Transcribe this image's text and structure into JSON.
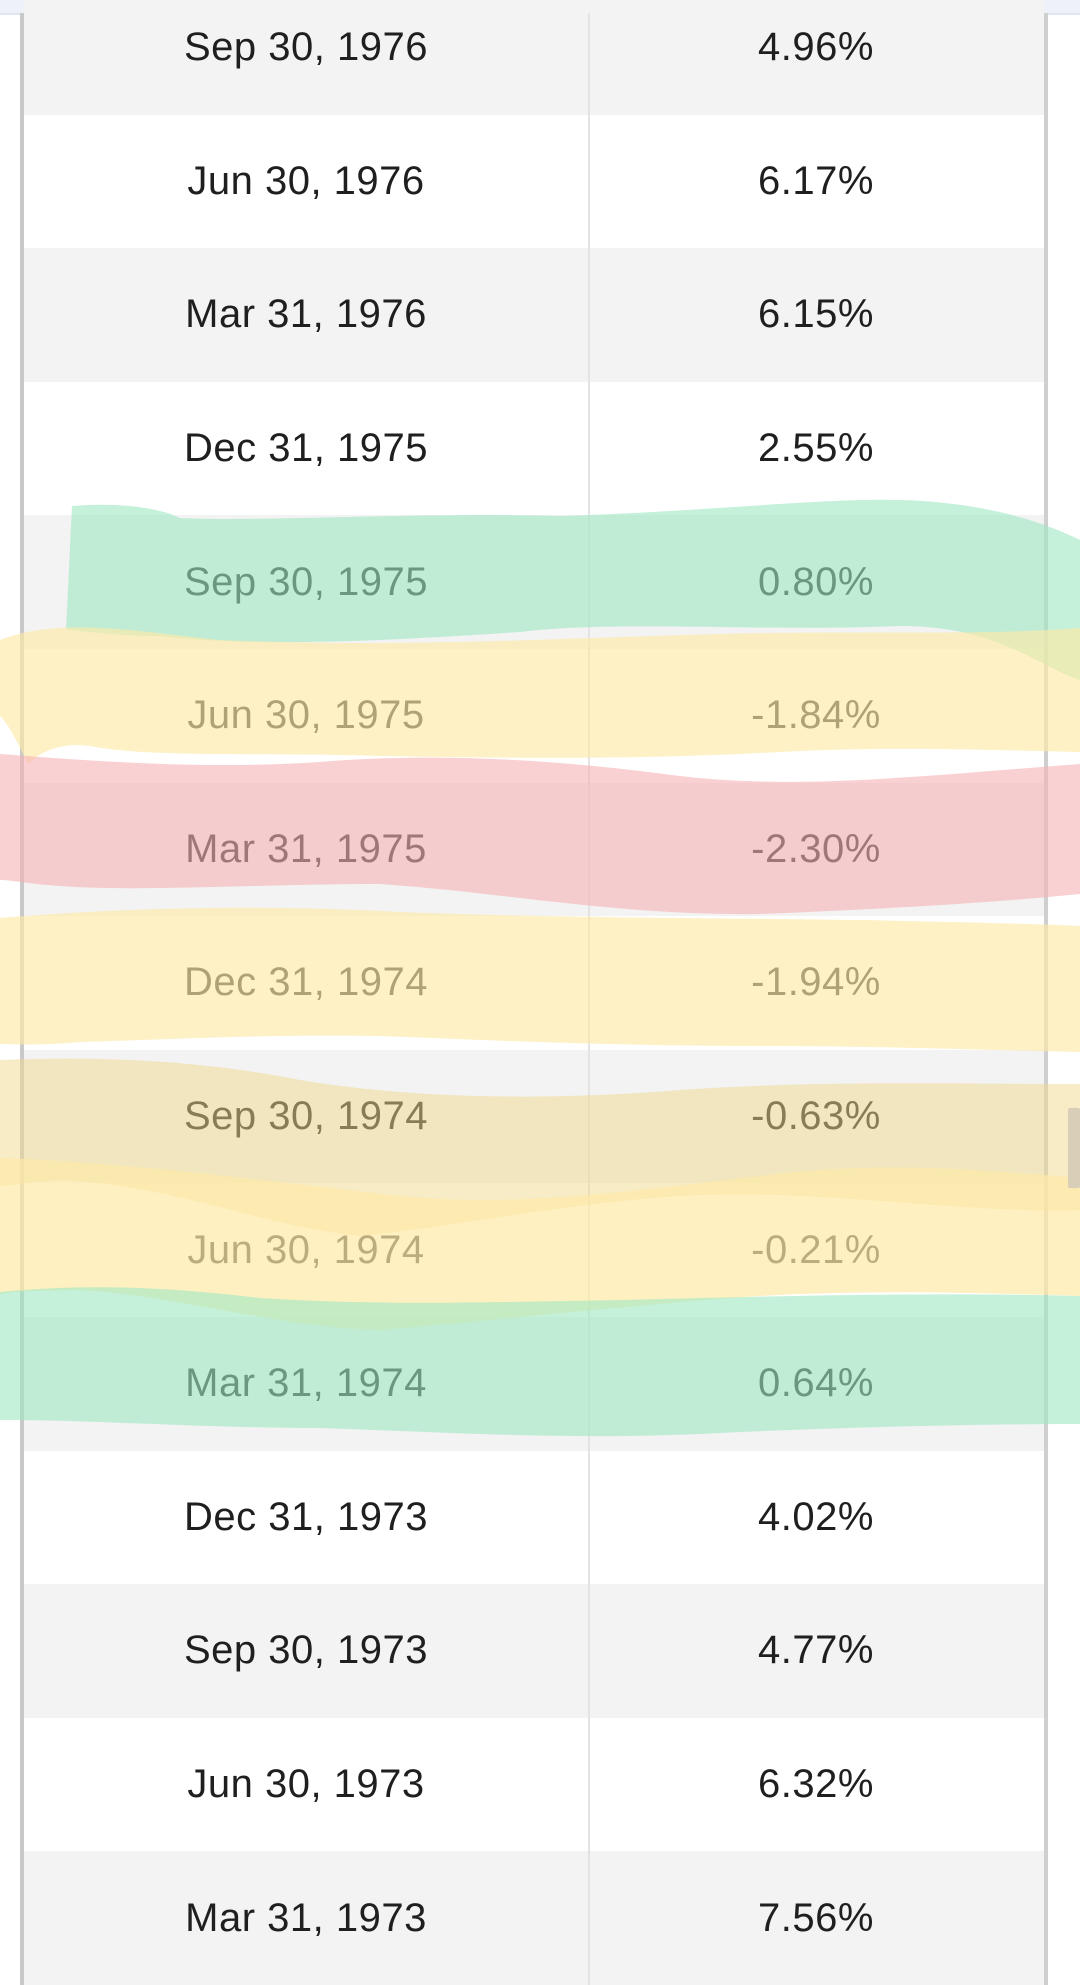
{
  "table": {
    "rows": [
      {
        "date": "Sep 30, 1976",
        "rate": "4.96%"
      },
      {
        "date": "Jun 30, 1976",
        "rate": "6.17%"
      },
      {
        "date": "Mar 31, 1976",
        "rate": "6.15%"
      },
      {
        "date": "Dec 31, 1975",
        "rate": "2.55%"
      },
      {
        "date": "Sep 30, 1975",
        "rate": "0.80%",
        "highlight": "green"
      },
      {
        "date": "Jun 30, 1975",
        "rate": "-1.84%",
        "highlight": "yellow"
      },
      {
        "date": "Mar 31, 1975",
        "rate": "-2.30%",
        "highlight": "red"
      },
      {
        "date": "Dec 31, 1974",
        "rate": "-1.94%",
        "highlight": "yellow"
      },
      {
        "date": "Sep 30, 1974",
        "rate": "-0.63%",
        "highlight": "yellow"
      },
      {
        "date": "Jun 30, 1974",
        "rate": "-0.21%",
        "highlight": "yellow"
      },
      {
        "date": "Mar 31, 1974",
        "rate": "0.64%",
        "highlight": "green"
      },
      {
        "date": "Dec 31, 1973",
        "rate": "4.02%"
      },
      {
        "date": "Sep 30, 1973",
        "rate": "4.77%"
      },
      {
        "date": "Jun 30, 1973",
        "rate": "6.32%"
      },
      {
        "date": "Mar 31, 1973",
        "rate": "7.56%"
      }
    ]
  },
  "highlight_colors": {
    "green": "#9fe8c3",
    "yellow": "#fde9a6",
    "red": "#f6b3b5"
  }
}
